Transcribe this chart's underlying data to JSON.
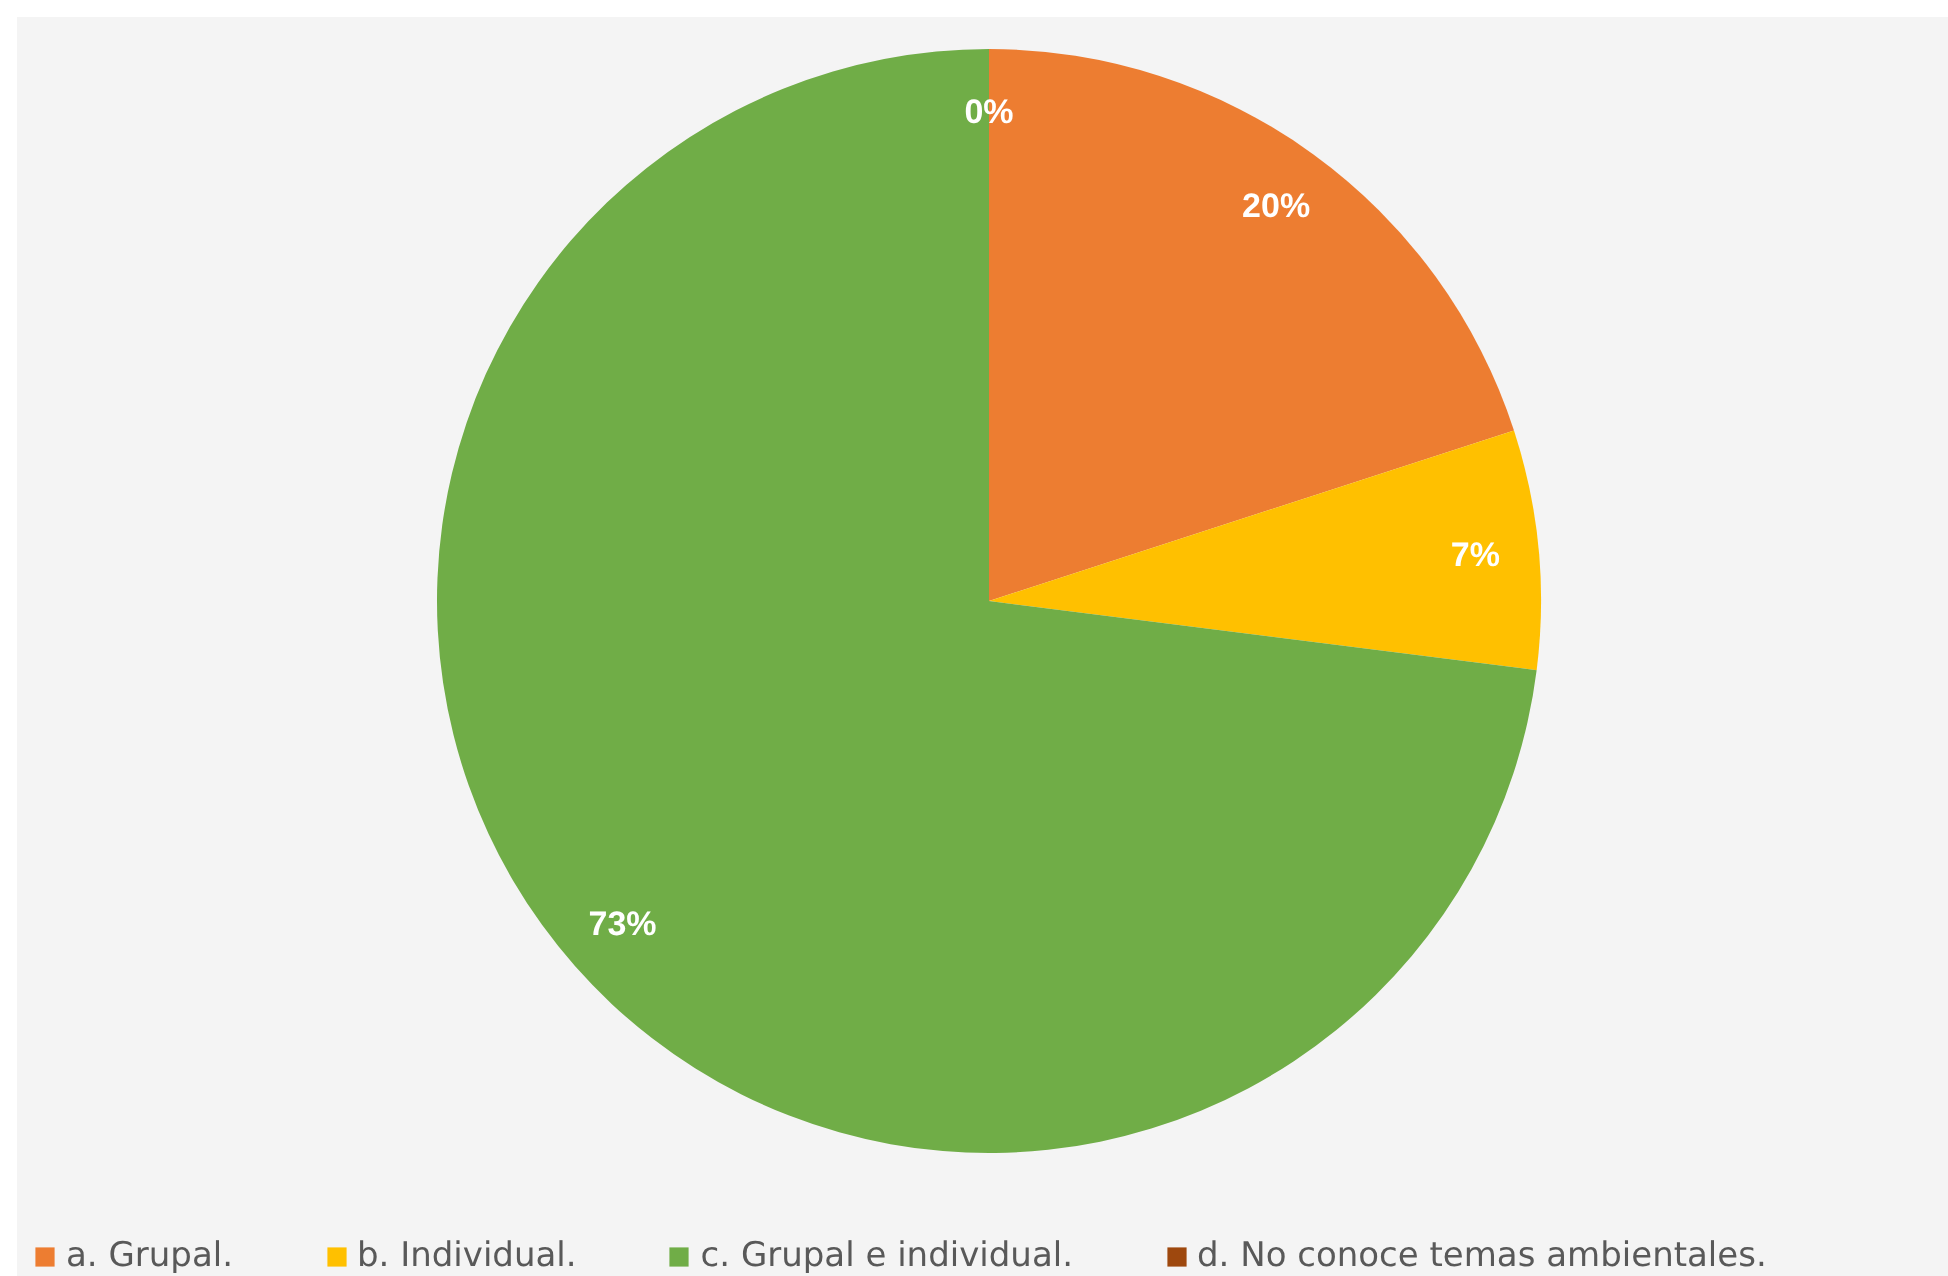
{
  "chart_data": {
    "type": "pie",
    "categories": [
      "a. Grupal.",
      "b. Individual.",
      "c. Grupal e individual.",
      "d. No conoce temas ambientales."
    ],
    "values": [
      20,
      7,
      73,
      0
    ],
    "colors": [
      "#ed7d31",
      "#ffc000",
      "#70ad47",
      "#9e480e"
    ],
    "value_labels": [
      "20%",
      "7%",
      "73%",
      "0%"
    ],
    "legend": "bottom"
  }
}
